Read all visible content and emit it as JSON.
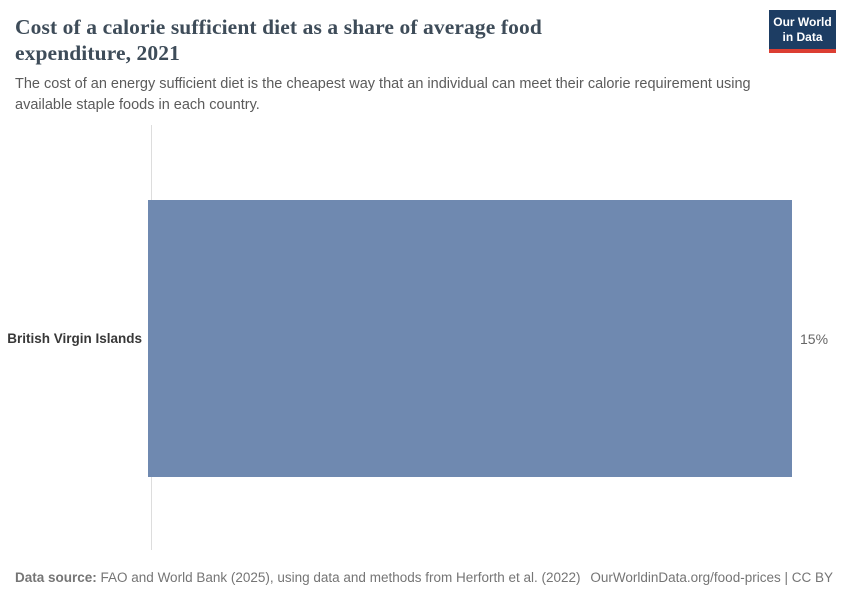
{
  "header": {
    "title": "Cost of a calorie sufficient diet as a share of average food expenditure, 2021",
    "subtitle": "The cost of an energy sufficient diet is the cheapest way that an individual can meet their calorie requirement using available staple foods in each country.",
    "logo": {
      "line1": "Our World",
      "line2": "in Data",
      "bg_color": "#1d3d63",
      "accent_color": "#dc3e32"
    }
  },
  "chart_data": {
    "type": "bar",
    "orientation": "horizontal",
    "categories": [
      "British Virgin Islands"
    ],
    "values": [
      15
    ],
    "value_labels": [
      "15%"
    ],
    "title": "Cost of a calorie sufficient diet as a share of average food expenditure, 2021",
    "xlabel": "",
    "ylabel": "",
    "xlim": [
      0,
      15
    ],
    "grid": false,
    "legend": "none",
    "bar_color": "#6f89b0",
    "axis_color": "#dddddd"
  },
  "footer": {
    "source_label": "Data source:",
    "source_text": " FAO and World Bank (2025), using data and methods from Herforth et al. (2022)",
    "link_text": "OurWorldinData.org/food-prices",
    "separator": " | ",
    "license_text": "CC BY"
  }
}
